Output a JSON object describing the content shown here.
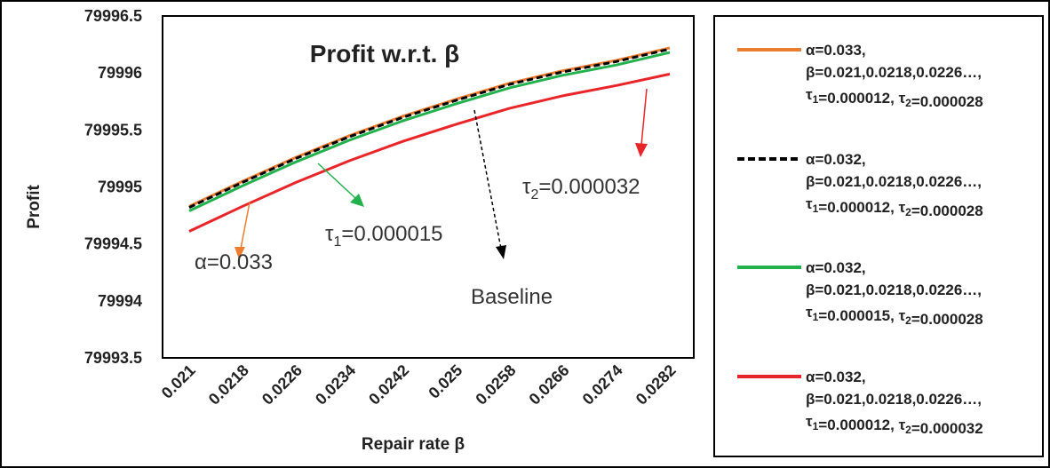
{
  "chart_data": {
    "type": "line",
    "title": "Profit w.r.t. β",
    "xlabel": "Repair rate β",
    "ylabel": "Profit",
    "categories": [
      "0.021",
      "0.0218",
      "0.0226",
      "0.0234",
      "0.0242",
      "0.025",
      "0.0258",
      "0.0266",
      "0.0274",
      "0.0282"
    ],
    "y_ticks": [
      "79996.5",
      "79996",
      "79995.5",
      "79995",
      "79994.5",
      "79994",
      "79993.5"
    ],
    "ylim": [
      79993.5,
      79996.5
    ],
    "grid": false,
    "legend_position": "right",
    "series": [
      {
        "name_lines": [
          "α=0.033,",
          "β=0.021,0.0218,0.0226…,",
          "τ1=0.000012, τ2=0.000028"
        ],
        "color": "#ED7D31",
        "dash": "solid",
        "values": [
          79994.83,
          79995.05,
          79995.26,
          79995.45,
          79995.62,
          79995.77,
          79995.91,
          79996.02,
          79996.11,
          79996.22
        ]
      },
      {
        "name_lines": [
          "α=0.032,",
          "β=0.021,0.0218,0.0226…,",
          "τ1=0.000012, τ2=0.000028"
        ],
        "color": "#000000",
        "dash": "dashed",
        "values": [
          79994.82,
          79995.04,
          79995.25,
          79995.44,
          79995.61,
          79995.76,
          79995.9,
          79996.01,
          79996.1,
          79996.21
        ]
      },
      {
        "name_lines": [
          "α=0.032,",
          "β=0.021,0.0218,0.0226…,",
          "τ1=0.000015, τ2=0.000028"
        ],
        "color": "#22B14C",
        "dash": "solid",
        "values": [
          79994.79,
          79995.01,
          79995.22,
          79995.41,
          79995.58,
          79995.73,
          79995.87,
          79995.98,
          79996.07,
          79996.18
        ]
      },
      {
        "name_lines": [
          "α=0.032,",
          "β=0.021,0.0218,0.0226…,",
          "τ1=0.000012, τ2=0.000032"
        ],
        "color": "#E8262A",
        "dash": "solid",
        "values": [
          79994.61,
          79994.83,
          79995.04,
          79995.23,
          79995.4,
          79995.55,
          79995.69,
          79995.8,
          79995.89,
          79995.99
        ]
      }
    ],
    "annotations": [
      {
        "label": "α=0.033",
        "color": "#ED7D31"
      },
      {
        "label": "τ1=0.000015",
        "color": "#22B14C"
      },
      {
        "label": "Baseline",
        "color": "#000000"
      },
      {
        "label": "τ2=0.000032",
        "color": "#E8262A"
      }
    ]
  }
}
